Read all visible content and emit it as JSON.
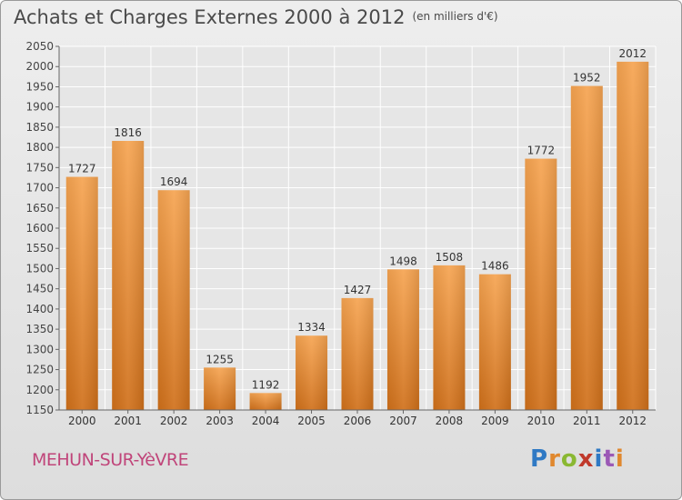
{
  "header": {
    "title": "Achats et Charges Externes 2000 à 2012",
    "unit": "(en milliers d'€)"
  },
  "footer": {
    "town": "MEHUN-SUR-YèVRE",
    "logo_text": "Proxiti",
    "logo_colors": [
      "#2f79c4",
      "#e0882e",
      "#8ab832",
      "#c0392b",
      "#2f79c4",
      "#9b59b6",
      "#e0882e"
    ]
  },
  "chart_data": {
    "type": "bar",
    "title": "Achats et Charges Externes 2000 à 2012",
    "subtitle": "(en milliers d'€)",
    "xlabel": "",
    "ylabel": "",
    "categories": [
      "2000",
      "2001",
      "2002",
      "2003",
      "2004",
      "2005",
      "2006",
      "2007",
      "2008",
      "2009",
      "2010",
      "2011",
      "2012"
    ],
    "values": [
      1727,
      1816,
      1694,
      1255,
      1192,
      1334,
      1427,
      1498,
      1508,
      1486,
      1772,
      1952,
      2012
    ],
    "ylim": [
      1150,
      2050
    ],
    "yticks": [
      1150,
      1200,
      1250,
      1300,
      1350,
      1400,
      1450,
      1500,
      1550,
      1600,
      1650,
      1700,
      1750,
      1800,
      1850,
      1900,
      1950,
      2000,
      2050
    ],
    "grid": true,
    "legend": "none",
    "colors": {
      "bar_top": "#f6a451",
      "bar_bottom": "#d0701a",
      "grid": "#ffffff",
      "plot_bg": "#e6e6e6"
    }
  }
}
